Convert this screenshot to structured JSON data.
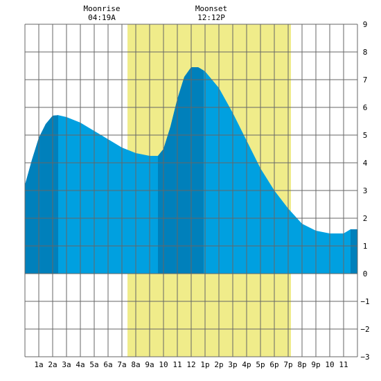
{
  "chart_data": {
    "type": "area",
    "title": "",
    "xlabel": "",
    "ylabel": "",
    "x_tick_labels": [
      "1a",
      "2a",
      "3a",
      "4a",
      "5a",
      "6a",
      "7a",
      "8a",
      "9a",
      "10",
      "11",
      "12",
      "1p",
      "2p",
      "3p",
      "4p",
      "5p",
      "6p",
      "7p",
      "8p",
      "9p",
      "10",
      "11"
    ],
    "xlim": [
      0,
      24
    ],
    "ylim": [
      -3,
      9
    ],
    "y_ticks": [
      9,
      8,
      7,
      6,
      5,
      4,
      3,
      2,
      1,
      0,
      -1,
      -2,
      -3
    ],
    "grid": true,
    "daylight": {
      "start": 7.4,
      "end": 19.2,
      "color": "#f0ec8a"
    },
    "annotations": [
      {
        "name": "Moonrise",
        "time": "04:19A",
        "x": 5.3
      },
      {
        "name": "Moonset",
        "time": "12:12P",
        "x": 13.2
      }
    ],
    "series": [
      {
        "x": [
          0,
          0.5,
          1,
          1.5,
          2,
          2.4,
          3,
          4,
          5,
          6,
          7,
          8,
          9,
          9.6,
          10,
          10.5,
          11,
          11.5,
          12,
          12.5,
          13,
          14,
          15,
          16,
          17,
          18,
          19,
          20,
          21,
          22,
          23,
          23.5,
          24
        ],
        "values": [
          3.2,
          4.1,
          4.9,
          5.4,
          5.7,
          5.72,
          5.65,
          5.45,
          5.15,
          4.85,
          4.55,
          4.35,
          4.25,
          4.25,
          4.5,
          5.3,
          6.3,
          7.1,
          7.45,
          7.45,
          7.3,
          6.7,
          5.8,
          4.8,
          3.8,
          3.0,
          2.35,
          1.8,
          1.55,
          1.45,
          1.45,
          1.6,
          1.6
        ]
      }
    ],
    "dark_bands": [
      [
        0,
        2.4
      ],
      [
        9.6,
        12.9
      ],
      [
        23.5,
        24
      ]
    ],
    "colors": {
      "fill": "#00a0e0",
      "dark": "#0080bb",
      "grid": "#666666"
    }
  }
}
